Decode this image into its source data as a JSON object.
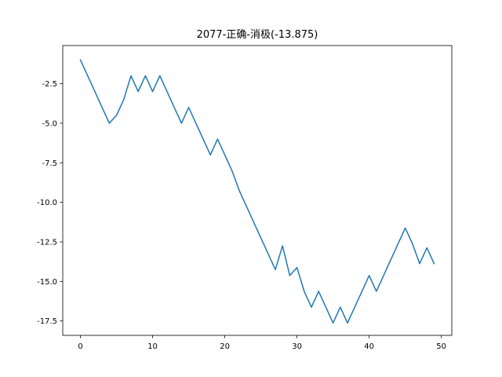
{
  "chart_data": {
    "type": "line",
    "title": "2077-正确-消极(-13.875)",
    "xlabel": "",
    "ylabel": "",
    "xlim": [
      -2.45,
      51.45
    ],
    "ylim": [
      -18.41,
      -0.09
    ],
    "grid": false,
    "series": [
      {
        "color": "#1f77b4",
        "x": [
          0,
          1,
          2,
          3,
          4,
          5,
          6,
          7,
          8,
          9,
          10,
          11,
          12,
          13,
          14,
          15,
          16,
          17,
          18,
          19,
          20,
          21,
          22,
          23,
          24,
          25,
          26,
          27,
          28,
          29,
          30,
          31,
          32,
          33,
          34,
          35,
          36,
          37,
          38,
          39,
          40,
          41,
          42,
          43,
          44,
          45,
          46,
          47,
          48,
          49
        ],
        "y": [
          -1.0,
          -2.0,
          -3.0,
          -4.0,
          -5.0,
          -4.5,
          -3.5,
          -2.0,
          -3.0,
          -2.0,
          -3.0,
          -2.0,
          -3.0,
          -4.0,
          -5.0,
          -4.0,
          -5.0,
          -6.0,
          -7.0,
          -6.0,
          -7.0,
          -8.0,
          -9.25,
          -10.25,
          -11.25,
          -12.25,
          -13.25,
          -14.25,
          -12.75,
          -14.625,
          -14.125,
          -15.625,
          -16.625,
          -15.625,
          -16.625,
          -17.625,
          -16.625,
          -17.625,
          -16.625,
          -15.625,
          -14.625,
          -15.625,
          -14.625,
          -13.625,
          -12.625,
          -11.625,
          -12.625,
          -13.875,
          -12.875,
          -13.875
        ]
      }
    ],
    "x_ticks": [
      0,
      10,
      20,
      30,
      40,
      50
    ],
    "x_tick_labels": [
      "0",
      "10",
      "20",
      "30",
      "40",
      "50"
    ],
    "y_ticks": [
      -2.5,
      -5.0,
      -7.5,
      -10.0,
      -12.5,
      -15.0,
      -17.5
    ],
    "y_tick_labels": [
      "-2.5",
      "-5.0",
      "-7.5",
      "-10.0",
      "-12.5",
      "-15.0",
      "-17.5"
    ]
  }
}
